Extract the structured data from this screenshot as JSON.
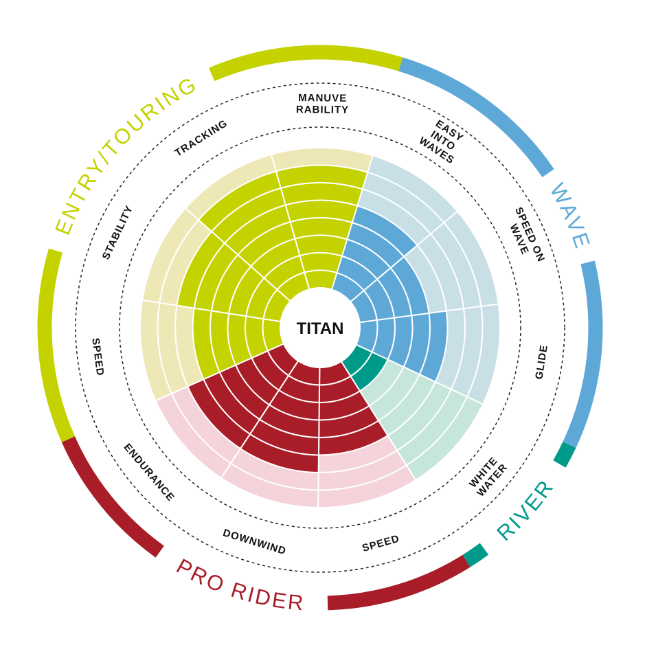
{
  "chart_data": {
    "type": "radial-rating",
    "center_label": "TITAN",
    "max_level": 8,
    "categories": [
      {
        "name": "WAVE",
        "color": "#5ea8d8",
        "light": "#c8dfe6"
      },
      {
        "name": "RIVER",
        "color": "#009a8a",
        "light": "#c6e6dc"
      },
      {
        "name": "PRO RIDER",
        "color": "#a81d28",
        "light": "#f5d3da"
      },
      {
        "name": "ENTRY/TOURING",
        "color": "#c4d200",
        "light": "#eee8b6"
      }
    ],
    "attributes": [
      {
        "label": [
          "EASY",
          "INTO",
          "WAVES"
        ],
        "category": "WAVE",
        "value": 5
      },
      {
        "label": [
          "SPEED ON",
          "WAVE"
        ],
        "category": "WAVE",
        "value": 4
      },
      {
        "label": [
          "GLIDE"
        ],
        "category": "WAVE",
        "value": 5
      },
      {
        "label": [
          "WHITE",
          "WATER"
        ],
        "category": "RIVER",
        "value": 2
      },
      {
        "label": [
          "SPEED"
        ],
        "category": "PRO RIDER",
        "value": 5
      },
      {
        "label": [
          "DOWNWIND"
        ],
        "category": "PRO RIDER",
        "value": 6
      },
      {
        "label": [
          "ENDURANCE"
        ],
        "category": "PRO RIDER",
        "value": 6
      },
      {
        "label": [
          "SPEED"
        ],
        "category": "ENTRY/TOURING",
        "value": 5
      },
      {
        "label": [
          "STABILITY"
        ],
        "category": "ENTRY/TOURING",
        "value": 6
      },
      {
        "label": [
          "TRACKING"
        ],
        "category": "ENTRY/TOURING",
        "value": 7
      },
      {
        "label": [
          "MANUVE",
          "RABILITY"
        ],
        "category": "ENTRY/TOURING",
        "value": 7
      }
    ]
  }
}
